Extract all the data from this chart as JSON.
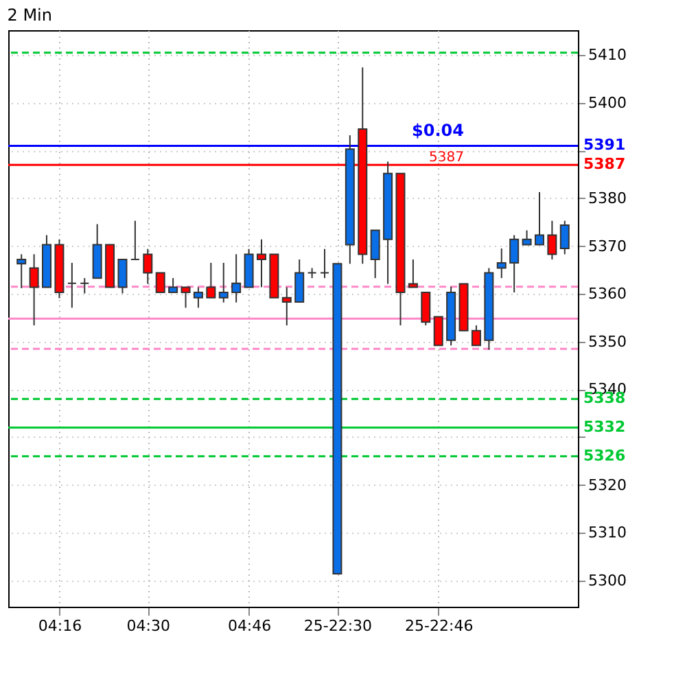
{
  "chart_data": {
    "type": "candlestick",
    "title": "2 Min",
    "categories": [
      null,
      null,
      null,
      "04:16",
      null,
      null,
      null,
      null,
      null,
      null,
      "04:30",
      null,
      null,
      null,
      null,
      null,
      null,
      null,
      "04:46",
      null,
      null,
      null,
      null,
      null,
      null,
      "25-22:30",
      null,
      null,
      null,
      null,
      null,
      null,
      null,
      "25-22:46",
      null,
      null,
      null,
      null,
      null,
      null,
      null,
      null,
      null,
      null
    ],
    "ohlc": [
      [
        5366.3,
        5368.3,
        5361.2,
        5367.2
      ],
      [
        5365.4,
        5368.3,
        5353.4,
        5361.4
      ],
      [
        5361.4,
        5372.3,
        5361.4,
        5370.3
      ],
      [
        5370.3,
        5371.4,
        5359.1,
        5360.3
      ],
      [
        5362.2,
        5366.5,
        5357.1,
        5362.2
      ],
      [
        5362.2,
        5363.3,
        5360.1,
        5362.2
      ],
      [
        5363.3,
        5374.6,
        5363.3,
        5370.3
      ],
      [
        5370.3,
        5370.3,
        5361.4,
        5361.4
      ],
      [
        5361.4,
        5367.2,
        5360.1,
        5367.2
      ],
      [
        5367.2,
        5375.3,
        5367.2,
        5367.2
      ],
      [
        5368.3,
        5369.4,
        5362.1,
        5364.4
      ],
      [
        5364.4,
        5364.4,
        5360.3,
        5360.3
      ],
      [
        5360.3,
        5363.3,
        5360.3,
        5361.4
      ],
      [
        5361.4,
        5361.4,
        5357.1,
        5360.3
      ],
      [
        5359.2,
        5361.4,
        5357.1,
        5360.3
      ],
      [
        5361.4,
        5366.5,
        5359.2,
        5359.2
      ],
      [
        5359.2,
        5366.5,
        5358.2,
        5360.3
      ],
      [
        5360.3,
        5368.3,
        5358.2,
        5362.2
      ],
      [
        5361.4,
        5369.4,
        5361.4,
        5368.3
      ],
      [
        5368.3,
        5371.4,
        5361.4,
        5367.2
      ],
      [
        5368.3,
        5368.3,
        5359.2,
        5359.2
      ],
      [
        5359.2,
        5361.4,
        5353.4,
        5358.3
      ],
      [
        5358.3,
        5367.2,
        5358.3,
        5364.4
      ],
      [
        5364.4,
        5365.4,
        5363.3,
        5364.4
      ],
      [
        5364.4,
        5369.4,
        5363.3,
        5364.4
      ],
      [
        5301.4,
        5366.3,
        5301.4,
        5366.3
      ],
      [
        5370.3,
        5393.2,
        5366.3,
        5390.3
      ],
      [
        5394.5,
        5407.4,
        5366.3,
        5368.3
      ],
      [
        5367.2,
        5373.3,
        5363.3,
        5373.3
      ],
      [
        5371.4,
        5387.7,
        5362.1,
        5385.2
      ],
      [
        5385.2,
        5385.2,
        5353.4,
        5360.3
      ],
      [
        5362.1,
        5367.2,
        5361.4,
        5361.4
      ],
      [
        5360.3,
        5360.3,
        5353.4,
        5354.1
      ],
      [
        5355.2,
        5355.2,
        5349.2,
        5349.2
      ],
      [
        5350.3,
        5361.5,
        5349.2,
        5360.3
      ],
      [
        5362.1,
        5362.1,
        5352.3,
        5352.3
      ],
      [
        5352.3,
        5353.4,
        5349.2,
        5349.2
      ],
      [
        5350.3,
        5365.4,
        5348.3,
        5364.4
      ],
      [
        5365.4,
        5369.5,
        5363.3,
        5366.5
      ],
      [
        5366.5,
        5372.3,
        5360.3,
        5371.4
      ],
      [
        5370.3,
        5373.3,
        5370.3,
        5371.4
      ],
      [
        5370.3,
        5381.3,
        5370.3,
        5372.3
      ],
      [
        5372.3,
        5375.3,
        5367.2,
        5368.3
      ],
      [
        5369.5,
        5375.3,
        5368.3,
        5374.4
      ]
    ],
    "colors": [
      "#0a6ee6",
      "#ff0000",
      "#0a6ee6",
      "#ff0000",
      "#333333",
      "#333333",
      "#0a6ee6",
      "#ff0000",
      "#0a6ee6",
      "#333333",
      "#ff0000",
      "#ff0000",
      "#0a6ee6",
      "#ff0000",
      "#0a6ee6",
      "#ff0000",
      "#0a6ee6",
      "#0a6ee6",
      "#0a6ee6",
      "#ff0000",
      "#ff0000",
      "#ff0000",
      "#0a6ee6",
      "#333333",
      "#333333",
      "#0a6ee6",
      "#0a6ee6",
      "#ff0000",
      "#0a6ee6",
      "#0a6ee6",
      "#ff0000",
      "#ff0000",
      "#ff0000",
      "#ff0000",
      "#0a6ee6",
      "#ff0000",
      "#ff0000",
      "#0a6ee6",
      "#0a6ee6",
      "#0a6ee6",
      "#0a6ee6",
      "#0a6ee6",
      "#ff0000",
      "#0a6ee6"
    ],
    "ylim": [
      5294.5,
      5415.2
    ],
    "yticks": [
      5300,
      5310,
      5320,
      {
        "value": 5330,
        "label": null
      },
      5340,
      5350,
      5360,
      5370,
      5380,
      {
        "value": 5390,
        "label": null
      },
      5400,
      5410
    ],
    "grid": true,
    "ref_lines": [
      {
        "axis": "y",
        "value": 5391,
        "label": "5391",
        "color": "#0000ff",
        "line_style": "solid"
      },
      {
        "axis": "y",
        "value": 5387,
        "label": "5387",
        "color": "#ff0000",
        "line_style": "solid"
      },
      {
        "axis": "y",
        "value": 5338,
        "label": "5338",
        "color": "#00c832",
        "line_style": "dashed"
      },
      {
        "axis": "y",
        "value": 5332,
        "label": "5332",
        "color": "#00c832",
        "line_style": "solid"
      },
      {
        "axis": "y",
        "value": 5326,
        "label": "5326",
        "color": "#00c832",
        "line_style": "dashed"
      },
      {
        "axis": "y",
        "value": 5410.5,
        "label": null,
        "color": "#00c832",
        "line_style": "dashed"
      },
      {
        "axis": "y",
        "value": 5361.5,
        "label": null,
        "color": "#ff88c8",
        "line_style": "dashed"
      },
      {
        "axis": "y",
        "value": 5354.8,
        "label": null,
        "color": "#ff88c8",
        "line_style": "solid"
      },
      {
        "axis": "y",
        "value": 5348.5,
        "label": null,
        "color": "#ff88c8",
        "line_style": "dashed"
      }
    ],
    "annotations": [
      "$0.04",
      "5387"
    ]
  }
}
